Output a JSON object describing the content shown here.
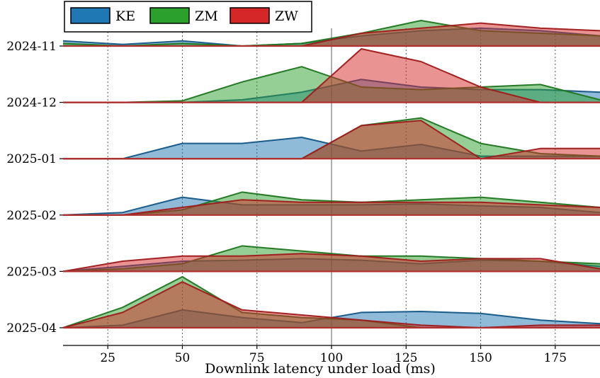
{
  "chart_data": {
    "type": "area",
    "subtype": "ridgeline",
    "title": "",
    "xlabel": "Downlink latency under load (ms)",
    "ylabel": "",
    "xlim": [
      10,
      190
    ],
    "x_ticks": [
      25,
      50,
      75,
      100,
      125,
      150,
      175
    ],
    "x_tick_labels": [
      "25",
      "50",
      "75",
      "100",
      "125",
      "150",
      "175"
    ],
    "vertical_reference_line": 100,
    "grid": "vertical dotted lines at x ticks",
    "legend": {
      "placement": "top-left"
    },
    "rows": [
      "2024-11",
      "2024-12",
      "2025-01",
      "2025-02",
      "2025-03",
      "2025-04"
    ],
    "x": [
      10,
      30,
      50,
      70,
      90,
      110,
      130,
      150,
      170,
      190
    ],
    "series": [
      {
        "name": "KE",
        "color": "#1f77b4",
        "values_by_row": [
          [
            0.1,
            0.03,
            0.1,
            0.0,
            0.05,
            0.2,
            0.3,
            0.35,
            0.3,
            0.2
          ],
          [
            0.0,
            0.0,
            0.0,
            0.05,
            0.2,
            0.45,
            0.3,
            0.25,
            0.25,
            0.2
          ],
          [
            0.0,
            0.0,
            0.3,
            0.3,
            0.42,
            0.15,
            0.28,
            0.05,
            0.05,
            0.05
          ],
          [
            0.0,
            0.05,
            0.35,
            0.2,
            0.2,
            0.2,
            0.22,
            0.18,
            0.15,
            0.05
          ],
          [
            0.0,
            0.1,
            0.2,
            0.22,
            0.25,
            0.22,
            0.15,
            0.22,
            0.2,
            0.1
          ],
          [
            0.0,
            0.05,
            0.35,
            0.2,
            0.1,
            0.3,
            0.32,
            0.28,
            0.15,
            0.08
          ]
        ]
      },
      {
        "name": "ZM",
        "color": "#2ca02c",
        "values_by_row": [
          [
            0.05,
            0.0,
            0.05,
            0.0,
            0.05,
            0.25,
            0.5,
            0.3,
            0.25,
            0.2
          ],
          [
            0.0,
            0.0,
            0.03,
            0.4,
            0.7,
            0.3,
            0.25,
            0.3,
            0.35,
            0.05
          ],
          [
            0.0,
            0.0,
            0.0,
            0.0,
            0.0,
            0.65,
            0.8,
            0.3,
            0.1,
            0.05
          ],
          [
            0.0,
            0.0,
            0.1,
            0.45,
            0.3,
            0.25,
            0.3,
            0.35,
            0.25,
            0.15
          ],
          [
            0.0,
            0.05,
            0.15,
            0.5,
            0.4,
            0.3,
            0.3,
            0.25,
            0.2,
            0.15
          ],
          [
            0.0,
            0.4,
            1.0,
            0.3,
            0.2,
            0.15,
            0.0,
            0.0,
            0.0,
            0.0
          ]
        ]
      },
      {
        "name": "ZW",
        "color": "#d62728",
        "values_by_row": [
          [
            0.0,
            0.0,
            0.0,
            0.0,
            0.0,
            0.25,
            0.35,
            0.45,
            0.35,
            0.3
          ],
          [
            0.0,
            0.0,
            0.0,
            0.0,
            0.0,
            1.05,
            0.8,
            0.3,
            0.0,
            0.0
          ],
          [
            0.0,
            0.0,
            0.0,
            0.0,
            0.0,
            0.65,
            0.75,
            0.0,
            0.2,
            0.2
          ],
          [
            0.0,
            0.0,
            0.15,
            0.3,
            0.25,
            0.25,
            0.25,
            0.25,
            0.2,
            0.15
          ],
          [
            0.0,
            0.2,
            0.3,
            0.3,
            0.35,
            0.3,
            0.2,
            0.25,
            0.25,
            0.05
          ],
          [
            0.0,
            0.3,
            0.9,
            0.35,
            0.25,
            0.15,
            0.05,
            0.0,
            0.05,
            0.05
          ]
        ]
      }
    ]
  }
}
